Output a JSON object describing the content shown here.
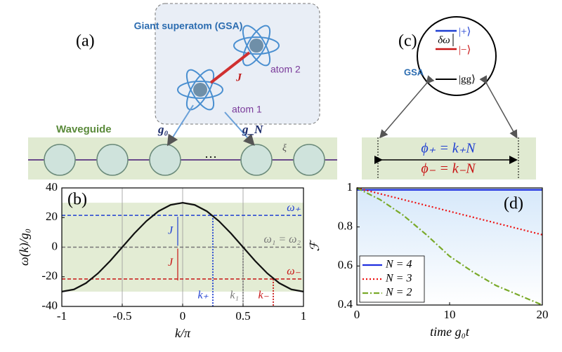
{
  "chart_data": [
    {
      "type": "line",
      "panel_label": "(b)",
      "xlabel": "k/π",
      "ylabel": "ω(k)/g₀",
      "x": [
        -1,
        -0.9,
        -0.8,
        -0.7,
        -0.6,
        -0.5,
        -0.4,
        -0.3,
        -0.2,
        -0.1,
        0,
        0.1,
        0.2,
        0.3,
        0.4,
        0.5,
        0.6,
        0.7,
        0.8,
        0.9,
        1
      ],
      "series": [
        {
          "color": "#111111",
          "dash": "solid",
          "values": [
            -30,
            -28.53,
            -24.27,
            -17.63,
            -9.27,
            0,
            9.27,
            17.63,
            24.27,
            28.53,
            30,
            28.53,
            24.27,
            17.63,
            9.27,
            0,
            -9.27,
            -17.63,
            -24.27,
            -28.53,
            -30
          ]
        }
      ],
      "xlim": [
        -1,
        1
      ],
      "ylim": [
        -40,
        40
      ],
      "xticks": [
        -1,
        -0.5,
        0,
        0.5,
        1
      ],
      "yticks": [
        -40,
        -20,
        0,
        20,
        40
      ],
      "grid": true,
      "band": [
        -30,
        30
      ],
      "band_color": "#e3ecd4",
      "hlines": [
        {
          "y": 21.5,
          "label": "ω₊",
          "color": "#1f3fd1"
        },
        {
          "y": 0,
          "label": "ω₁ = ω₂",
          "color": "#777777"
        },
        {
          "y": -21.5,
          "label": "ω₋",
          "color": "#c81414"
        }
      ],
      "vlines": [
        {
          "x": 0.25,
          "label": "k₊",
          "color": "#1f3fd1"
        },
        {
          "x": 0.5,
          "label": "k₁",
          "color": "#777777"
        },
        {
          "x": 0.75,
          "label": "k₋",
          "color": "#c81414"
        }
      ],
      "gap_labels": [
        "J",
        "J"
      ]
    },
    {
      "type": "line",
      "panel_label": "(d)",
      "xlabel": "time g₀t",
      "ylabel": "ℱ",
      "x": [
        0,
        2.5,
        5,
        7.5,
        10,
        12.5,
        15,
        17.5,
        20
      ],
      "series": [
        {
          "name": "N = 4",
          "color": "#1f2fe0",
          "dash": "solid",
          "values": [
            0.99,
            0.99,
            0.99,
            0.99,
            0.99,
            0.99,
            0.99,
            0.99,
            0.99
          ]
        },
        {
          "name": "N = 3",
          "color": "#ee1111",
          "dash": "dotted",
          "values": [
            1,
            0.97,
            0.94,
            0.91,
            0.88,
            0.85,
            0.82,
            0.79,
            0.76
          ]
        },
        {
          "name": "N = 2",
          "color": "#7aaa2a",
          "dash": "dashdot",
          "values": [
            1,
            0.94,
            0.86,
            0.76,
            0.65,
            0.57,
            0.5,
            0.45,
            0.4
          ]
        }
      ],
      "xlim": [
        0,
        20
      ],
      "ylim": [
        0.4,
        1
      ],
      "xticks": [
        0,
        10,
        20
      ],
      "yticks": [
        0.4,
        0.6,
        0.8,
        1
      ],
      "grid": false,
      "legend": "bottom-left"
    }
  ],
  "diagram_a": {
    "panel_label": "(a)",
    "gsa_title": "Giant superatom (GSA)",
    "coupling": "J",
    "atom2": "atom 2",
    "atom1": "atom 1",
    "waveguide": "Waveguide",
    "g0": "g₀",
    "gN": "g_N",
    "dots": "···",
    "xi": "ξ"
  },
  "diagram_c": {
    "panel_label": "(c)",
    "delta": "δω",
    "plus": "|+⟩",
    "minus": "|−⟩",
    "ground": "|gg⟩",
    "gsa": "GSA",
    "phi_plus": "ϕ₊ = k₊N",
    "phi_minus": "ϕ₋ = k₋N"
  }
}
